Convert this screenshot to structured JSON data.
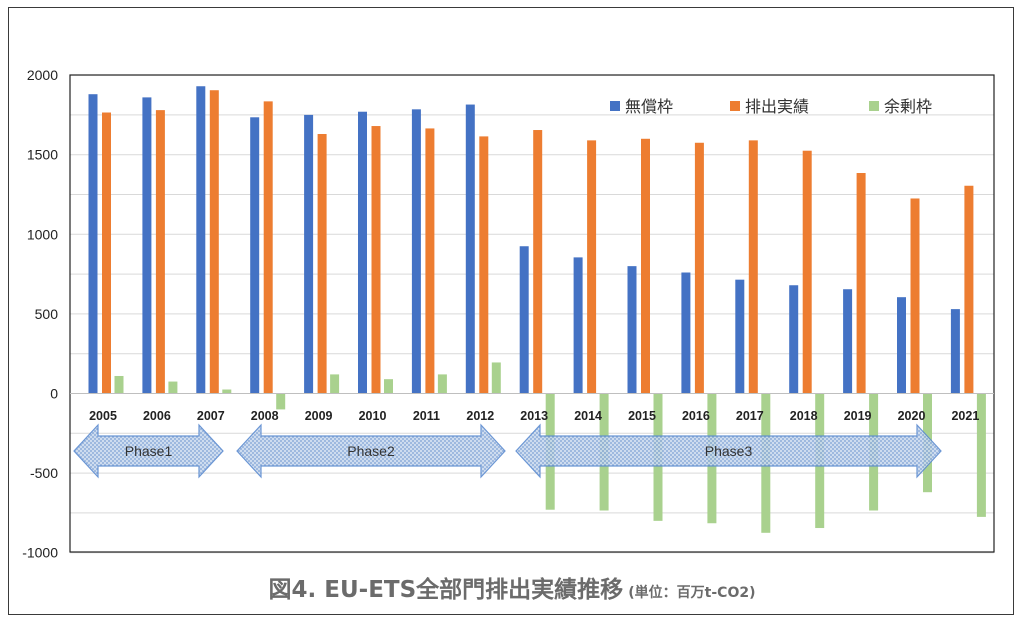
{
  "caption": {
    "title": "図4. EU-ETS全部門排出実績推移",
    "unit": "(単位：百万t-CO2)"
  },
  "colors": {
    "free_allocation": "#4472c4",
    "emissions": "#ed7d31",
    "surplus": "#a9d18e",
    "phase_arrow_fill": "#b8cce4",
    "phase_arrow_stroke": "#5b8bd0"
  },
  "chart_data": {
    "type": "bar",
    "categories": [
      "2005",
      "2006",
      "2007",
      "2008",
      "2009",
      "2010",
      "2011",
      "2012",
      "2013",
      "2014",
      "2015",
      "2016",
      "2017",
      "2018",
      "2019",
      "2020",
      "2021"
    ],
    "series": [
      {
        "name": "無償枠",
        "values": [
          1880,
          1860,
          1930,
          1735,
          1750,
          1770,
          1785,
          1815,
          925,
          855,
          800,
          760,
          715,
          680,
          655,
          605,
          530
        ]
      },
      {
        "name": "排出実績",
        "values": [
          1765,
          1780,
          1905,
          1835,
          1630,
          1680,
          1665,
          1615,
          1655,
          1590,
          1600,
          1575,
          1590,
          1525,
          1385,
          1225,
          1305
        ]
      },
      {
        "name": "余剰枠",
        "values": [
          110,
          75,
          25,
          -100,
          120,
          90,
          120,
          195,
          -730,
          -735,
          -800,
          -815,
          -875,
          -845,
          -735,
          -620,
          -775
        ]
      }
    ],
    "yticks": [
      2000,
      1500,
      1000,
      500,
      0,
      -500,
      -1000
    ],
    "ylim": [
      -1000,
      2000
    ],
    "legend_position": "top-right",
    "grid": true,
    "phases": [
      {
        "label": "Phase1",
        "from": "2005",
        "to": "2007"
      },
      {
        "label": "Phase2",
        "from": "2008",
        "to": "2012"
      },
      {
        "label": "Phase3",
        "from": "2013",
        "to": "2020"
      }
    ]
  }
}
